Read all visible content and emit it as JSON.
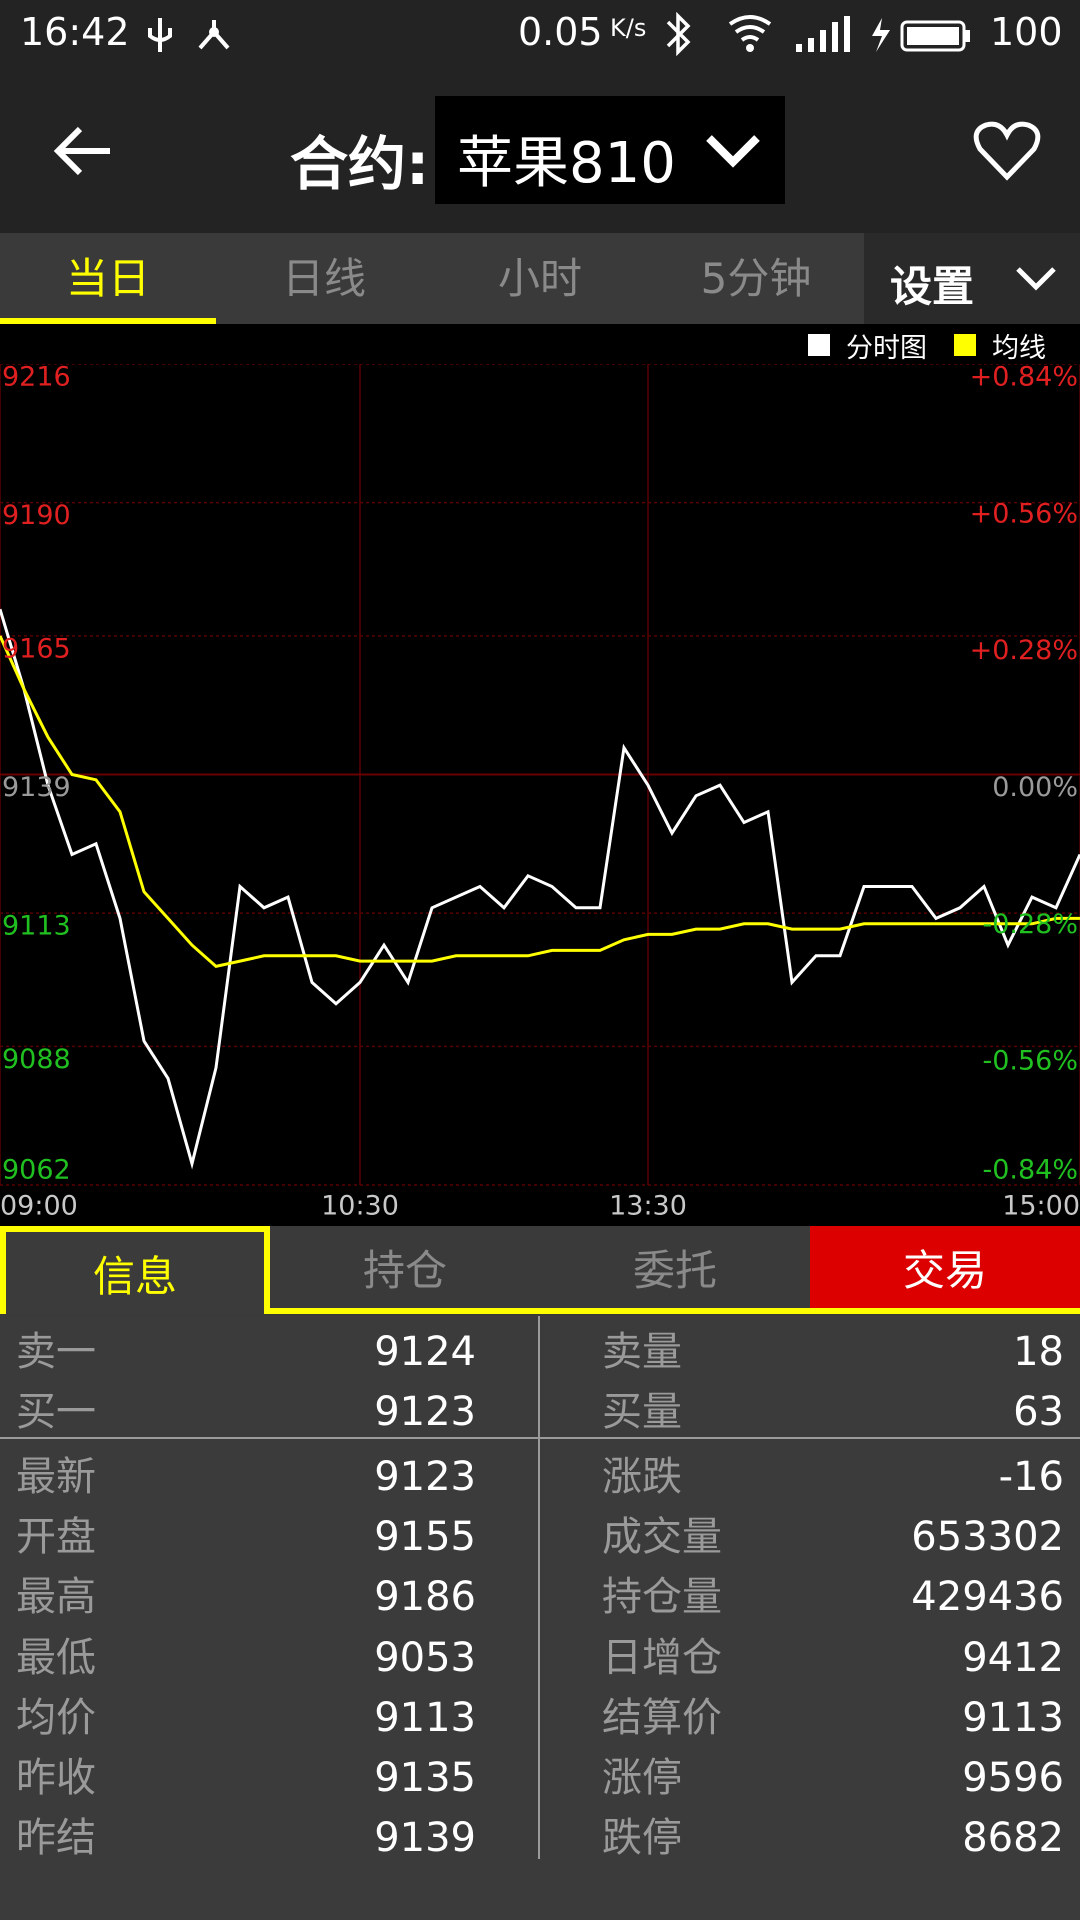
{
  "status_bar": {
    "time": "16:42",
    "speed": "0.05",
    "speed_unit": "K/s",
    "battery": "100"
  },
  "header": {
    "label": "合约:",
    "contract": "苹果810"
  },
  "period_tabs": [
    "当日",
    "日线",
    "小时",
    "5分钟"
  ],
  "settings": "设置",
  "chart_data": {
    "type": "line",
    "x": [
      0,
      5,
      10,
      15,
      20,
      25,
      30,
      35,
      40,
      45,
      50,
      55,
      60,
      65,
      70,
      75,
      80,
      85,
      90,
      95,
      100,
      105,
      110,
      115,
      120,
      125,
      130,
      135,
      140,
      145,
      150,
      155,
      160,
      165,
      170,
      175,
      180,
      185,
      190,
      195,
      200,
      205,
      210,
      215,
      220,
      225
    ],
    "series": [
      {
        "name": "分时图",
        "color": "#ffffff",
        "values": [
          9170,
          9155,
          9137,
          9124,
          9126,
          9112,
          9089,
          9082,
          9066,
          9084,
          9118,
          9114,
          9116,
          9100,
          9096,
          9100,
          9107,
          9100,
          9114,
          9116,
          9118,
          9114,
          9120,
          9118,
          9114,
          9114,
          9144,
          9137,
          9128,
          9135,
          9137,
          9130,
          9132,
          9100,
          9105,
          9105,
          9118,
          9118,
          9118,
          9112,
          9114,
          9118,
          9107,
          9116,
          9114,
          9124
        ]
      },
      {
        "name": "均线",
        "color": "#ffff00",
        "values": [
          9165,
          9155,
          9146,
          9139,
          9138,
          9132,
          9117,
          9112,
          9107,
          9103,
          9104,
          9105,
          9105,
          9105,
          9105,
          9104,
          9104,
          9104,
          9104,
          9105,
          9105,
          9105,
          9105,
          9106,
          9106,
          9106,
          9108,
          9109,
          9109,
          9110,
          9110,
          9111,
          9111,
          9110,
          9110,
          9110,
          9111,
          9111,
          9111,
          9111,
          9111,
          9111,
          9111,
          9111,
          9112,
          9112
        ]
      }
    ],
    "xlim": [
      0,
      225
    ],
    "xticks": [
      {
        "value": 0,
        "label": "09:00"
      },
      {
        "value": 75,
        "label": "10:30"
      },
      {
        "value": 135,
        "label": "13:30"
      },
      {
        "value": 225,
        "label": "15:00"
      }
    ],
    "ylim": [
      9062,
      9216
    ],
    "yticks": [
      9216,
      9190,
      9165,
      9139,
      9113,
      9088,
      9062
    ],
    "y2lim": [
      -0.84,
      0.84
    ],
    "y2ticks": [
      {
        "value": 0.84,
        "label": "+0.84%"
      },
      {
        "value": 0.56,
        "label": "+0.56%"
      },
      {
        "value": 0.28,
        "label": "+0.28%"
      },
      {
        "value": 0,
        "label": "0.00%"
      },
      {
        "value": -0.28,
        "label": "-0.28%"
      },
      {
        "value": -0.56,
        "label": "-0.56%"
      },
      {
        "value": -0.84,
        "label": "-0.84%"
      }
    ],
    "grid": true
  },
  "info_tabs": [
    "信息",
    "持仓",
    "委托",
    "交易"
  ],
  "table": {
    "rows": [
      [
        "卖一",
        "9124",
        "卖量",
        "18"
      ],
      [
        "买一",
        "9123",
        "买量",
        "63"
      ],
      [
        "最新",
        "9123",
        "涨跌",
        "-16"
      ],
      [
        "开盘",
        "9155",
        "成交量",
        "653302"
      ],
      [
        "最高",
        "9186",
        "持仓量",
        "429436"
      ],
      [
        "最低",
        "9053",
        "日增仓",
        "9412"
      ],
      [
        "均价",
        "9113",
        "结算价",
        "9113"
      ],
      [
        "昨收",
        "9135",
        "涨停",
        "9596"
      ],
      [
        "昨结",
        "9139",
        "跌停",
        "8682"
      ]
    ]
  }
}
